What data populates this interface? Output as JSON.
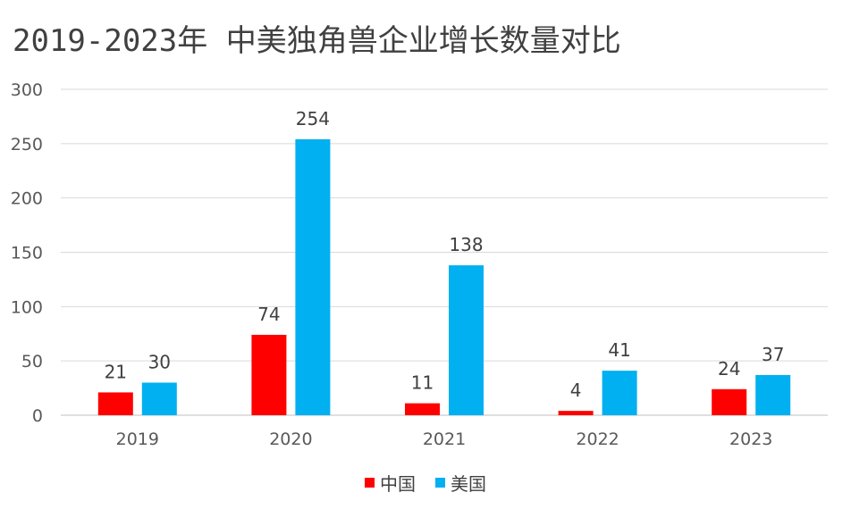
{
  "chart_data": {
    "type": "bar",
    "title": "2019-2023年 中美独角兽企业增长数量对比",
    "categories": [
      "2019",
      "2020",
      "2021",
      "2022",
      "2023"
    ],
    "series": [
      {
        "name": "中国",
        "values": [
          21,
          74,
          11,
          4,
          24
        ],
        "color": "#ff0000"
      },
      {
        "name": "美国",
        "values": [
          30,
          254,
          138,
          41,
          37
        ],
        "color": "#00b0f0"
      }
    ],
    "ylim": [
      0,
      300
    ],
    "yticks": [
      "0",
      "50",
      "100",
      "150",
      "200",
      "250",
      "300"
    ],
    "grid": true,
    "legend_position": "bottom"
  }
}
